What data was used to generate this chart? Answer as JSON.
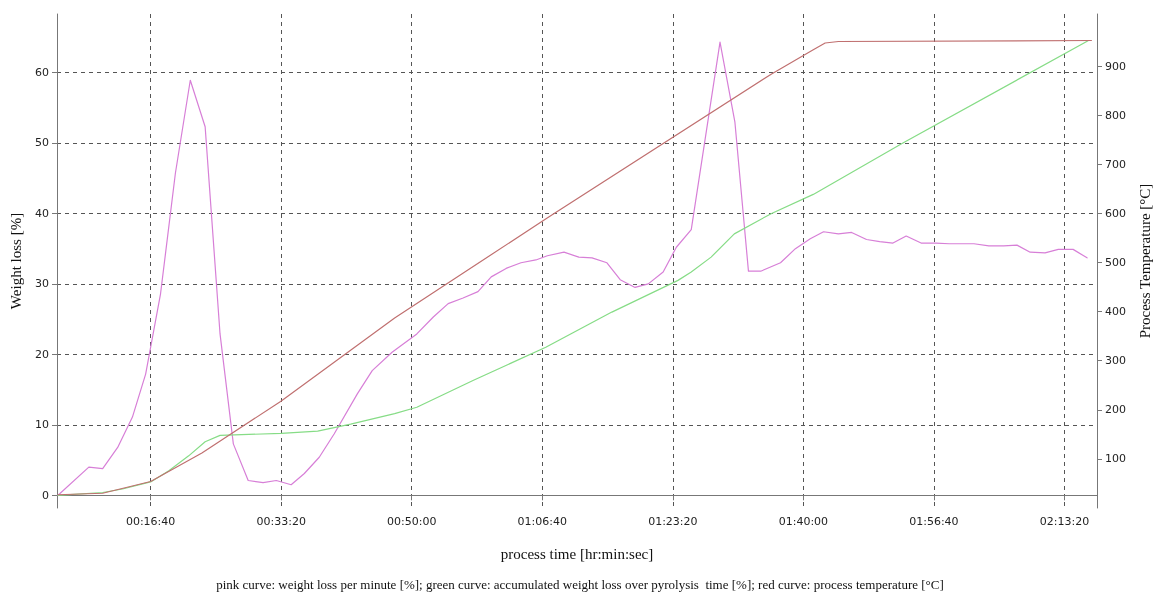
{
  "chart_data": {
    "type": "line",
    "xlabel": "process time [hr:min:sec]",
    "ylabel": "Weight loss [%]",
    "y2label": "Process Temperature [°C]",
    "annotations": [
      "pink curve: weight loss per minute [%]; green curve: accumulated weight loss over pyrolysis  time [%]; red curve: process temperature [°C]"
    ],
    "xlim": [
      0.0786,
      2.2914
    ],
    "xticks": [
      {
        "value": 0.2778,
        "label": "00:16:40"
      },
      {
        "value": 0.5556,
        "label": "00:33:20"
      },
      {
        "value": 0.8333,
        "label": "00:50:00"
      },
      {
        "value": 1.1111,
        "label": "01:06:40"
      },
      {
        "value": 1.3889,
        "label": "01:23:20"
      },
      {
        "value": 1.6667,
        "label": "01:40:00"
      },
      {
        "value": 1.9444,
        "label": "01:56:40"
      },
      {
        "value": 2.2222,
        "label": "02:13:20"
      }
    ],
    "ylim": [
      -1.8,
      68.3
    ],
    "yticks": [
      0,
      10,
      20,
      30,
      40,
      50,
      60
    ],
    "y2lim": [
      0,
      1006
    ],
    "y2ticks": [
      100,
      200,
      300,
      400,
      500,
      600,
      700,
      800,
      900
    ],
    "grid": true,
    "marker": "none",
    "line_style": "solid",
    "series": [
      {
        "color": "#d77fd7",
        "x": [
          0.0808,
          0.1463,
          0.1758,
          0.2077,
          0.2391,
          0.2672,
          0.2989,
          0.3305,
          0.3622,
          0.3938,
          0.4255,
          0.4538,
          0.4854,
          0.5171,
          0.5452,
          0.5768,
          0.6049,
          0.6366,
          0.6682,
          0.7176,
          0.7493,
          0.7915,
          0.8442,
          0.8793,
          0.9109,
          0.9426,
          0.9743,
          1.0025,
          1.0342,
          1.0658,
          1.0975,
          1.122,
          1.1573,
          1.1889,
          1.217,
          1.2487,
          1.2769,
          1.3086,
          1.3367,
          1.3683,
          1.3964,
          1.4281,
          1.4893,
          1.5209,
          1.5498,
          1.5758,
          1.618,
          1.6497,
          1.6813,
          1.7096,
          1.7412,
          1.7693,
          1.801,
          1.8291,
          1.8573,
          1.8854,
          1.9171,
          1.9487,
          1.9768,
          2.005,
          2.0296,
          2.0612,
          2.0929,
          2.1211,
          2.1492,
          2.1809,
          2.209,
          2.2406,
          2.2702
        ],
        "values": [
          0,
          4.0,
          3.8,
          6.8,
          11.1,
          17.2,
          28.6,
          45.7,
          58.9,
          52.3,
          22.9,
          7.3,
          2.1,
          1.8,
          2.1,
          1.5,
          3.1,
          5.4,
          8.7,
          14.4,
          17.7,
          20.3,
          22.9,
          25.3,
          27.2,
          28.0,
          28.9,
          31.0,
          32.2,
          33.0,
          33.4,
          34.0,
          34.5,
          33.8,
          33.7,
          33.0,
          30.6,
          29.5,
          30.0,
          31.7,
          35.2,
          37.7,
          64.3,
          53.0,
          31.8,
          31.8,
          33.0,
          35.0,
          36.4,
          37.4,
          37.1,
          37.3,
          36.3,
          36.0,
          35.8,
          36.8,
          35.8,
          35.8,
          35.7,
          35.7,
          35.7,
          35.4,
          35.4,
          35.5,
          34.5,
          34.4,
          34.9,
          34.9,
          33.7
        ]
      },
      {
        "color": "#86dc86",
        "x": [
          0.0808,
          0.1758,
          0.218,
          0.2778,
          0.3166,
          0.3588,
          0.3938,
          0.4255,
          0.4713,
          0.5557,
          0.6332,
          0.7035,
          0.797,
          0.8442,
          0.9637,
          1.1186,
          1.2592,
          1.3999,
          1.4281,
          1.4703,
          1.5197,
          1.599,
          1.6877,
          1.8784,
          2.2724
        ],
        "values": [
          0,
          0.4,
          0.9,
          1.9,
          3.5,
          5.6,
          7.6,
          8.5,
          8.6,
          8.8,
          9.1,
          10.1,
          11.6,
          12.5,
          16.3,
          21.0,
          26.0,
          30.5,
          31.7,
          33.8,
          37.1,
          40.0,
          42.7,
          50.0,
          64.5
        ]
      },
      {
        "color": "#c07070",
        "axis": "y2",
        "x": [
          0.0808,
          0.1758,
          0.2778,
          0.3869,
          0.5543,
          0.797,
          1.1207,
          1.599,
          1.6877,
          1.713,
          1.7412,
          2.2795
        ],
        "values": [
          27,
          30,
          54,
          112,
          217,
          387,
          590,
          884,
          933,
          947,
          950,
          952
        ]
      }
    ]
  }
}
